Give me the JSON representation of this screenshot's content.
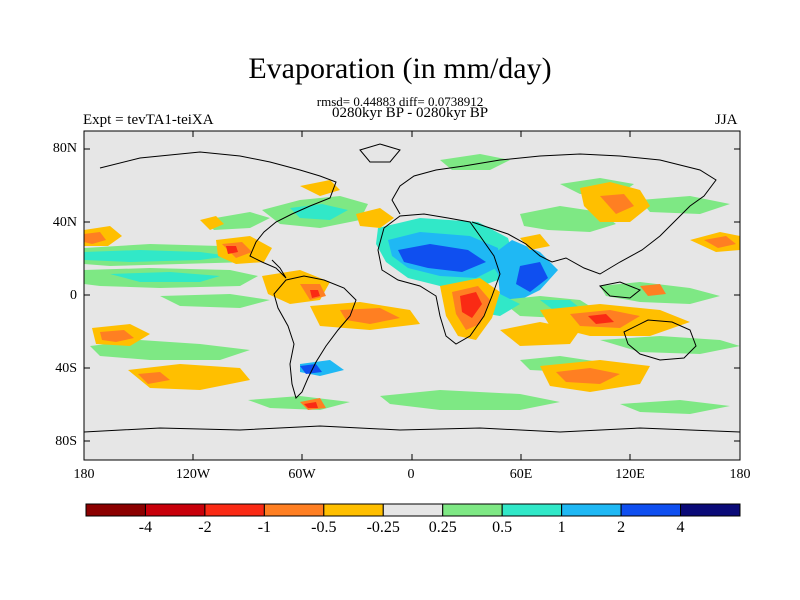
{
  "title": "Evaporation (in mm/day)",
  "stats": "rmsd= 0.44883 diff= 0.0738912",
  "period": "0280kyr BP - 0280kyr BP",
  "expt": "Expt = tevTA1-teiXA",
  "season": "JJA",
  "lat_ticks": [
    "80N",
    "40N",
    "0",
    "40S",
    "80S"
  ],
  "lon_ticks": [
    "180",
    "120W",
    "60W",
    "0",
    "60E",
    "120E",
    "180"
  ],
  "colorbar": {
    "labels": [
      "-4",
      "-2",
      "-1",
      "-0.5",
      "-0.25",
      "0.25",
      "0.5",
      "1",
      "2",
      "4"
    ],
    "colors": [
      "#8b0000",
      "#c8000a",
      "#fa2a14",
      "#ff7f22",
      "#ffbf00",
      "#e6e6e6",
      "#7ee884",
      "#31e8c8",
      "#1fb8f4",
      "#0f4ff0",
      "#0a0a78"
    ]
  },
  "colors": {
    "background": "#e6e6e6",
    "coast": "#000000"
  }
}
